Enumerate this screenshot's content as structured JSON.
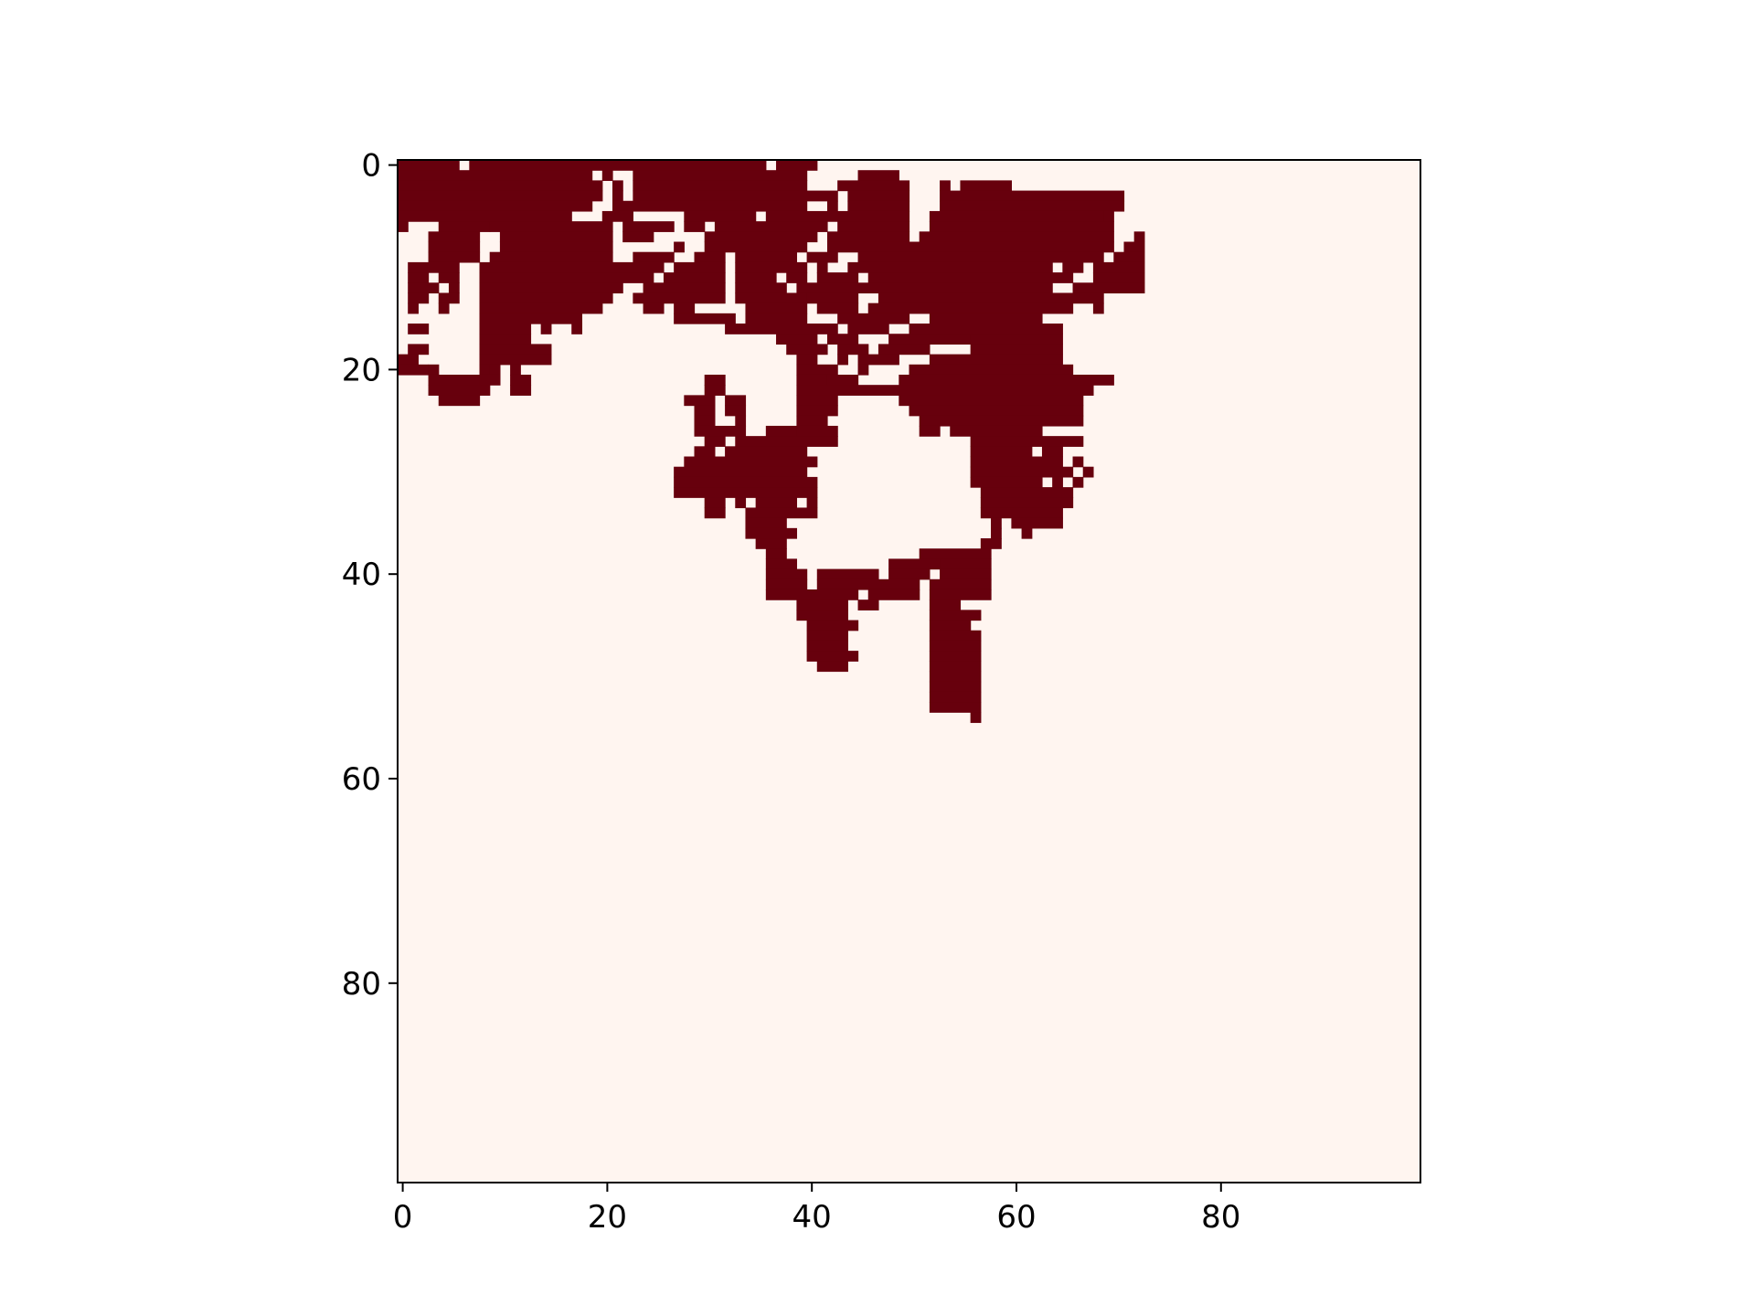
{
  "chart_data": {
    "type": "heatmap",
    "title": "",
    "xlabel": "",
    "ylabel": "",
    "grid": false,
    "legend": "none",
    "colormap": "Reds",
    "color_low": "#fff5f0",
    "color_high": "#67000d",
    "x_range": [
      -0.5,
      99.5
    ],
    "y_range": [
      -0.5,
      99.5
    ],
    "y_inverted": true,
    "shape": [
      100,
      100
    ],
    "x_ticks": [
      0,
      20,
      40,
      60,
      80
    ],
    "y_ticks": [
      0,
      20,
      40,
      60,
      80
    ],
    "x_tick_labels": [
      "0",
      "20",
      "40",
      "60",
      "80"
    ],
    "y_tick_labels": [
      "0",
      "20",
      "40",
      "60",
      "80"
    ],
    "values_encoding": "binary matrix, rows 0..99 from top; value 1 rendered #67000d, value 0 rendered #fff5f0; rows listed as [start,end] inclusive column runs of value 1, omitted rows are all 0",
    "rows_with_ones": {
      "0": [
        [
          0,
          5
        ],
        [
          7,
          35
        ],
        [
          37,
          40
        ]
      ],
      "1": [
        [
          0,
          18
        ],
        [
          20,
          20
        ],
        [
          23,
          39
        ],
        [
          45,
          48
        ]
      ],
      "2": [
        [
          0,
          19
        ],
        [
          21,
          21
        ],
        [
          23,
          39
        ],
        [
          43,
          49
        ],
        [
          53,
          53
        ],
        [
          55,
          59
        ]
      ],
      "3": [
        [
          0,
          19
        ],
        [
          21,
          21
        ],
        [
          23,
          42
        ],
        [
          44,
          49
        ],
        [
          53,
          70
        ]
      ],
      "4": [
        [
          0,
          18
        ],
        [
          21,
          39
        ],
        [
          42,
          42
        ],
        [
          44,
          49
        ],
        [
          53,
          70
        ]
      ],
      "5": [
        [
          0,
          16
        ],
        [
          20,
          22
        ],
        [
          28,
          34
        ],
        [
          36,
          49
        ],
        [
          52,
          68
        ],
        [
          69,
          69
        ]
      ],
      "6": [
        [
          0,
          0
        ],
        [
          4,
          8
        ],
        [
          9,
          20
        ],
        [
          22,
          26
        ],
        [
          28,
          29
        ],
        [
          31,
          41
        ],
        [
          43,
          49
        ],
        [
          52,
          69
        ]
      ],
      "7": [
        [
          3,
          7
        ],
        [
          10,
          20
        ],
        [
          22,
          24
        ],
        [
          30,
          40
        ],
        [
          42,
          49
        ],
        [
          51,
          69
        ],
        [
          72,
          72
        ]
      ],
      "8": [
        [
          3,
          7
        ],
        [
          10,
          20
        ],
        [
          27,
          27
        ],
        [
          30,
          39
        ],
        [
          42,
          69
        ],
        [
          71,
          72
        ]
      ],
      "9": [
        [
          3,
          7
        ],
        [
          9,
          20
        ],
        [
          23,
          26
        ],
        [
          29,
          31
        ],
        [
          33,
          38
        ],
        [
          40,
          42
        ],
        [
          45,
          68
        ],
        [
          70,
          72
        ]
      ],
      "10": [
        [
          1,
          5
        ],
        [
          8,
          25
        ],
        [
          27,
          31
        ],
        [
          33,
          39
        ],
        [
          41,
          41
        ],
        [
          44,
          63
        ],
        [
          65,
          66
        ],
        [
          68,
          72
        ]
      ],
      "11": [
        [
          1,
          2
        ],
        [
          4,
          5
        ],
        [
          8,
          24
        ],
        [
          26,
          31
        ],
        [
          33,
          36
        ],
        [
          38,
          39
        ],
        [
          41,
          44
        ],
        [
          46,
          65
        ],
        [
          68,
          72
        ]
      ],
      "12": [
        [
          1,
          3
        ],
        [
          5,
          5
        ],
        [
          8,
          21
        ],
        [
          24,
          31
        ],
        [
          33,
          37
        ],
        [
          39,
          63
        ],
        [
          66,
          72
        ]
      ],
      "13": [
        [
          1,
          2
        ],
        [
          4,
          5
        ],
        [
          8,
          20
        ],
        [
          23,
          31
        ],
        [
          33,
          39
        ],
        [
          40,
          44
        ],
        [
          47,
          68
        ]
      ],
      "14": [
        [
          1,
          1
        ],
        [
          4,
          4
        ],
        [
          8,
          19
        ],
        [
          24,
          25
        ],
        [
          27,
          28
        ],
        [
          34,
          39
        ],
        [
          41,
          44
        ],
        [
          46,
          65
        ],
        [
          68,
          68
        ]
      ],
      "15": [
        [
          8,
          17
        ],
        [
          27,
          32
        ],
        [
          34,
          39
        ],
        [
          43,
          49
        ],
        [
          52,
          62
        ]
      ],
      "16": [
        [
          1,
          2
        ],
        [
          8,
          12
        ],
        [
          14,
          14
        ],
        [
          17,
          17
        ],
        [
          32,
          42
        ],
        [
          44,
          47
        ],
        [
          50,
          64
        ]
      ],
      "17": [
        [
          8,
          12
        ],
        [
          15,
          14
        ],
        [
          37,
          40
        ],
        [
          42,
          44
        ],
        [
          48,
          55
        ],
        [
          56,
          64
        ]
      ],
      "18": [
        [
          1,
          2
        ],
        [
          8,
          14
        ],
        [
          38,
          41
        ],
        [
          43,
          45
        ],
        [
          47,
          51
        ],
        [
          56,
          64
        ]
      ],
      "19": [
        [
          0,
          1
        ],
        [
          8,
          14
        ],
        [
          39,
          40
        ],
        [
          43,
          43
        ],
        [
          45,
          48
        ],
        [
          52,
          64
        ]
      ],
      "20": [
        [
          0,
          2
        ],
        [
          3,
          3
        ],
        [
          8,
          8
        ],
        [
          9,
          9
        ],
        [
          11,
          11
        ],
        [
          39,
          42
        ],
        [
          45,
          45
        ],
        [
          50,
          65
        ]
      ],
      "21": [
        [
          3,
          7
        ],
        [
          8,
          9
        ],
        [
          11,
          12
        ],
        [
          30,
          31
        ],
        [
          39,
          41
        ],
        [
          42,
          44
        ],
        [
          49,
          69
        ]
      ],
      "22": [
        [
          3,
          8
        ],
        [
          11,
          12
        ],
        [
          30,
          31
        ],
        [
          39,
          49
        ],
        [
          50,
          67
        ]
      ],
      "23": [
        [
          4,
          7
        ],
        [
          28,
          30
        ],
        [
          32,
          33
        ],
        [
          39,
          42
        ],
        [
          49,
          66
        ]
      ],
      "24": [
        [
          29,
          30
        ],
        [
          32,
          33
        ],
        [
          39,
          42
        ],
        [
          50,
          66
        ]
      ],
      "25": [
        [
          29,
          30
        ],
        [
          33,
          33
        ],
        [
          39,
          41
        ],
        [
          51,
          66
        ]
      ],
      "26": [
        [
          29,
          33
        ],
        [
          36,
          38
        ],
        [
          39,
          42
        ],
        [
          51,
          52
        ],
        [
          54,
          62
        ]
      ],
      "27": [
        [
          30,
          31
        ],
        [
          33,
          42
        ],
        [
          56,
          66
        ]
      ],
      "28": [
        [
          29,
          30
        ],
        [
          32,
          39
        ],
        [
          56,
          61
        ],
        [
          63,
          64
        ]
      ],
      "29": [
        [
          28,
          40
        ],
        [
          56,
          64
        ],
        [
          66,
          66
        ]
      ],
      "30": [
        [
          27,
          39
        ],
        [
          56,
          65
        ],
        [
          67,
          67
        ]
      ],
      "31": [
        [
          27,
          40
        ],
        [
          56,
          62
        ],
        [
          64,
          64
        ],
        [
          66,
          66
        ]
      ],
      "32": [
        [
          27,
          40
        ],
        [
          57,
          65
        ]
      ],
      "33": [
        [
          30,
          31
        ],
        [
          33,
          33
        ],
        [
          35,
          38
        ],
        [
          40,
          40
        ],
        [
          57,
          65
        ]
      ],
      "34": [
        [
          30,
          31
        ],
        [
          34,
          40
        ],
        [
          57,
          64
        ]
      ],
      "35": [
        [
          34,
          37
        ],
        [
          58,
          58
        ],
        [
          60,
          64
        ]
      ],
      "36": [
        [
          34,
          38
        ],
        [
          58,
          58
        ],
        [
          61,
          61
        ]
      ],
      "37": [
        [
          35,
          37
        ],
        [
          57,
          58
        ]
      ],
      "38": [
        [
          36,
          37
        ],
        [
          51,
          57
        ]
      ],
      "39": [
        [
          36,
          38
        ],
        [
          48,
          52
        ],
        [
          53,
          57
        ]
      ],
      "40": [
        [
          36,
          39
        ],
        [
          41,
          46
        ],
        [
          48,
          51
        ],
        [
          53,
          57
        ]
      ],
      "41": [
        [
          36,
          39
        ],
        [
          41,
          50
        ],
        [
          52,
          57
        ]
      ],
      "42": [
        [
          36,
          44
        ],
        [
          46,
          50
        ],
        [
          52,
          57
        ]
      ],
      "43": [
        [
          39,
          43
        ],
        [
          45,
          46
        ],
        [
          52,
          54
        ]
      ],
      "44": [
        [
          39,
          43
        ],
        [
          52,
          56
        ]
      ],
      "45": [
        [
          40,
          44
        ],
        [
          52,
          55
        ]
      ],
      "46": [
        [
          40,
          43
        ],
        [
          52,
          56
        ]
      ],
      "47": [
        [
          40,
          43
        ],
        [
          52,
          56
        ]
      ],
      "48": [
        [
          40,
          44
        ],
        [
          52,
          56
        ]
      ],
      "49": [
        [
          41,
          43
        ],
        [
          52,
          56
        ]
      ],
      "50": [
        [
          52,
          56
        ]
      ],
      "51": [
        [
          52,
          56
        ]
      ],
      "52": [
        [
          52,
          56
        ]
      ],
      "53": [
        [
          52,
          56
        ]
      ],
      "54": [
        [
          56,
          56
        ]
      ]
    }
  }
}
